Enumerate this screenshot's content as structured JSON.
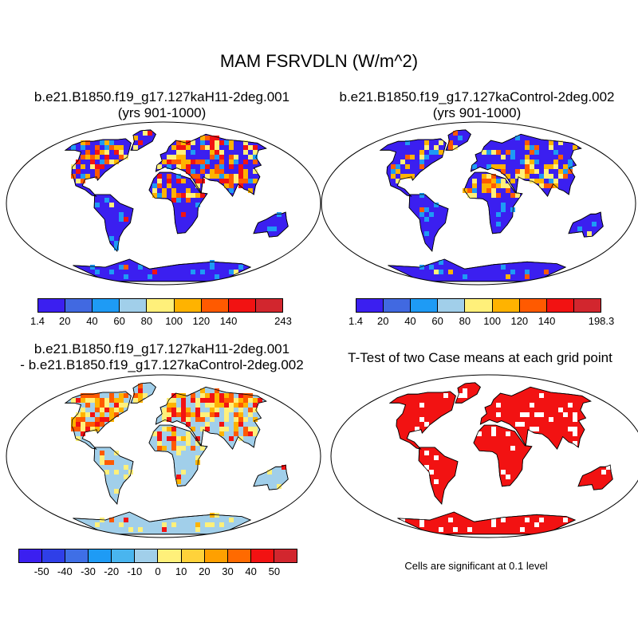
{
  "title": "MAM FSRVDLN (W/m^2)",
  "panels": {
    "case": {
      "title_line1": "b.e21.B1850.f19_g17.127kaH11-2deg.001",
      "title_line2": "(yrs 901-1000)"
    },
    "control": {
      "title_line1": "b.e21.B1850.f19_g17.127kaControl-2deg.002",
      "title_line2": "(yrs 901-1000)"
    },
    "diff": {
      "title_line1": "b.e21.B1850.f19_g17.127kaH11-2deg.001",
      "title_line2": "- b.e21.B1850.f19_g17.127kaControl-2deg.002"
    },
    "ttest": {
      "title_line1": "T-Test of two Case means at each grid point",
      "note": "Cells are significant at 0.1 level"
    }
  },
  "colorbars": {
    "case": {
      "labels": [
        "1.4",
        "20",
        "40",
        "60",
        "80",
        "100",
        "120",
        "140",
        "243"
      ],
      "colors": [
        "#3b1ff0",
        "#4169e1",
        "#1e9bf5",
        "#a1cfea",
        "#fff07a",
        "#ffb300",
        "#ff5a00",
        "#f21212",
        "#d2262e"
      ]
    },
    "control": {
      "labels": [
        "1.4",
        "20",
        "40",
        "60",
        "80",
        "100",
        "120",
        "140",
        "198.3"
      ],
      "colors": [
        "#3b1ff0",
        "#4169e1",
        "#1e9bf5",
        "#a1cfea",
        "#fff07a",
        "#ffb300",
        "#ff5a00",
        "#f21212",
        "#d2262e"
      ]
    },
    "diff": {
      "labels": [
        "-50",
        "-40",
        "-30",
        "-20",
        "-10",
        "0",
        "10",
        "20",
        "30",
        "40",
        "50"
      ],
      "colors": [
        "#3b1ff0",
        "#2f3fe8",
        "#3f6fe6",
        "#1e9bf5",
        "#49b5ef",
        "#a1cfea",
        "#fff07a",
        "#ffd23a",
        "#ffa000",
        "#ff6a00",
        "#f21212",
        "#d2262e"
      ]
    }
  },
  "maps": {
    "case": {
      "land_color": "#3b1ff0",
      "warm_colors": [
        "#fff07a",
        "#ffb300",
        "#ff5a00",
        "#f21212"
      ]
    },
    "control": {
      "land_color": "#3b1ff0",
      "warm_colors": [
        "#fff07a",
        "#ffb300",
        "#ff5a00"
      ]
    },
    "diff": {
      "land_color": "#a1cfea",
      "warm_colors": [
        "#fff07a",
        "#ffb300",
        "#ff5a00",
        "#f21212"
      ]
    },
    "ttest": {
      "land_color": "#f21212"
    }
  }
}
